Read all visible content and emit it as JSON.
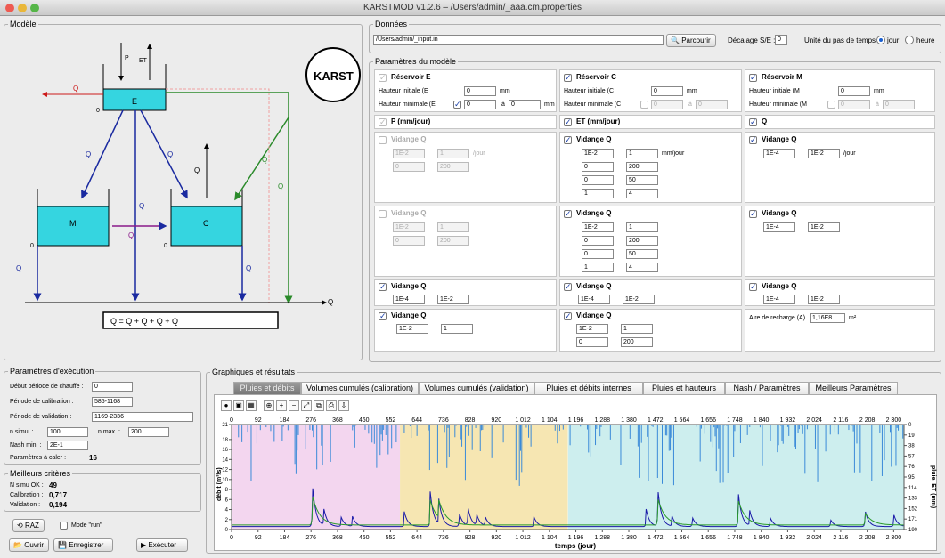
{
  "window": {
    "title": "KARSTMOD v1.2.6 – /Users/admin/_aaa.cm.properties"
  },
  "modele": {
    "legend": "Modèle",
    "logo_text": "KARST"
  },
  "donnees": {
    "legend": "Données",
    "path": "/Users/admin/_input.in",
    "browse": "Parcourir",
    "decalage_label": "Décalage S/E :",
    "decalage_value": "0",
    "unite_label": "Unité du pas de temps :",
    "unit_jour": "jour",
    "unit_heure": "heure"
  },
  "params": {
    "legend": "Paramètres du modèle",
    "resE": {
      "title": "Réservoir E",
      "h_init": "Hauteur initiale (E",
      "h_init_val": "0",
      "h_min": "Hauteur minimale (E",
      "h_min_a": "0",
      "h_min_b": "0",
      "mm": "mm",
      "a": "à"
    },
    "resC": {
      "title": "Réservoir C",
      "h_init": "Hauteur initiale (C",
      "h_init_val": "0",
      "h_min": "Hauteur minimale (C",
      "h_min_a": "0",
      "h_min_b": "0"
    },
    "resM": {
      "title": "Réservoir M",
      "h_init": "Hauteur initiale (M",
      "h_init_val": "0",
      "h_min": "Hauteur minimale (M",
      "h_min_a": "0",
      "h_min_b": "0"
    },
    "p": "P (mm/jour)",
    "et": "ET (mm/jour)",
    "qpump": "Q",
    "qies": {
      "title": "Vidange Q",
      "k_a": "1E-2",
      "k_b": "1",
      "unit": "/jour",
      "e_a": "0",
      "e_b": "200"
    },
    "qhyes": {
      "title": "Vidange Q",
      "k_a": "1E-2",
      "k_b": "1",
      "k_unit": "mm/jour",
      "e_a": "0",
      "e_b": "200",
      "d_a": "0",
      "d_b": "50",
      "al_a": "1",
      "al_b": "4"
    },
    "qies2": {
      "title": "Vidange Q",
      "k_a": "1E-4",
      "k_b": "1E-2",
      "unit": "/jour"
    },
    "qiec": {
      "title": "Vidange Q",
      "k_a": "1E-2",
      "k_b": "1",
      "e_a": "0",
      "e_b": "200"
    },
    "qhyec": {
      "title": "Vidange Q",
      "k_a": "1E-2",
      "k_b": "1",
      "e_a": "0",
      "e_b": "200",
      "d_a": "0",
      "d_b": "50",
      "al_a": "1",
      "al_b": "4"
    },
    "qisc": {
      "title": "Vidange Q",
      "k_a": "1E-4",
      "k_b": "1E-2"
    },
    "qims": {
      "title": "Vidange Q",
      "k_a": "1E-4",
      "k_b": "1E-2"
    },
    "qics": {
      "title": "Vidange Q",
      "k_a": "1E-4",
      "k_b": "1E-2"
    },
    "qiem": {
      "title": "Vidange Q",
      "k_a": "1E-4",
      "k_b": "1E-2"
    },
    "qemc": {
      "title": "Vidange Q",
      "k_a": "1E-2",
      "k_b": "1"
    },
    "qre": {
      "title": "Vidange Q",
      "k_a": "1E-2",
      "k_b": "1",
      "e_a": "0",
      "e_b": "200"
    },
    "aire": {
      "label": "Aire de recharge (A)",
      "value": "1,16E8",
      "unit": "m²"
    }
  },
  "exec": {
    "legend": "Paramètres d'exécution",
    "chauffe": "Début période de chauffe :",
    "chauffe_val": "0",
    "calib": "Période de calibration :",
    "calib_val": "585-1168",
    "valid": "Période de validation :",
    "valid_val": "1169-2336",
    "nsimu": "n simu. :",
    "nsimu_val": "100",
    "nmax": "n max. :",
    "nmax_val": "200",
    "nash": "Nash min. :",
    "nash_val": "2E-1",
    "caler": "Paramètres à caler :",
    "caler_val": "16"
  },
  "best": {
    "legend": "Meilleurs critères",
    "nsimu": "N simu OK :",
    "nsimu_val": "49",
    "calib": "Calibration :",
    "calib_val": "0,717",
    "valid": "Validation :",
    "valid_val": "0,194"
  },
  "buttons": {
    "raz": "RAZ",
    "run": "Mode \"run\"",
    "open": "Ouvrir",
    "save": "Enregistrer",
    "exec": "Exécuter"
  },
  "results": {
    "legend": "Graphiques et résultats",
    "tabs": [
      "Pluies et débits",
      "Volumes cumulés (calibration)",
      "Volumes cumulés (validation)",
      "Pluies et débits internes",
      "Pluies et hauteurs",
      "Nash / Paramètres",
      "Meilleurs Paramètres"
    ]
  },
  "chart_data": {
    "type": "line",
    "xlabel": "temps (jour)",
    "ylabel": "débit (m³/s)",
    "y2label": "pluie, ET (mm)",
    "xticks": [
      "0",
      "92",
      "184",
      "276",
      "368",
      "460",
      "552",
      "644",
      "736",
      "828",
      "920",
      "1 012",
      "1 104",
      "1 196",
      "1 288",
      "1 380",
      "1 472",
      "1 564",
      "1 656",
      "1 748",
      "1 840",
      "1 932",
      "2 024",
      "2 116",
      "2 208",
      "2 300"
    ],
    "yticks": [
      "0",
      "2",
      "4",
      "6",
      "8",
      "10",
      "12",
      "14",
      "16",
      "18",
      "21"
    ],
    "y2ticks": [
      "0",
      "19",
      "38",
      "57",
      "76",
      "95",
      "114",
      "133",
      "152",
      "171",
      "190"
    ],
    "xlim": [
      0,
      2336
    ],
    "ylim": [
      0,
      21
    ],
    "periods": [
      {
        "name": "chauffe",
        "start": 0,
        "end": 585,
        "color": "#f3d6ef"
      },
      {
        "name": "calibration",
        "start": 585,
        "end": 1168,
        "color": "#f6e6b2"
      },
      {
        "name": "validation",
        "start": 1169,
        "end": 2336,
        "color": "#cdeeee"
      }
    ],
    "series": [
      {
        "color": "#1a1aa8",
        "peaks": [
          [
            280,
            9
          ],
          [
            320,
            3.5
          ],
          [
            380,
            2
          ],
          [
            420,
            2
          ],
          [
            600,
            3
          ],
          [
            690,
            7
          ],
          [
            720,
            5
          ],
          [
            790,
            3
          ],
          [
            820,
            4
          ],
          [
            850,
            2.5
          ],
          [
            880,
            2
          ],
          [
            1050,
            2
          ],
          [
            1440,
            3.5
          ],
          [
            1480,
            8
          ],
          [
            1530,
            2
          ],
          [
            1600,
            2
          ],
          [
            1760,
            7
          ],
          [
            1800,
            3
          ],
          [
            1870,
            2
          ],
          [
            2080,
            1.5
          ],
          [
            2200,
            3.5
          ],
          [
            2300,
            2.5
          ]
        ]
      },
      {
        "color": "#2a9a2a",
        "peaks": [
          [
            280,
            6
          ],
          [
            690,
            5
          ],
          [
            720,
            3.5
          ],
          [
            1480,
            5.5
          ],
          [
            1760,
            5
          ],
          [
            2200,
            2.5
          ]
        ]
      }
    ],
    "rain": {
      "color": "#3a8ad8"
    }
  }
}
